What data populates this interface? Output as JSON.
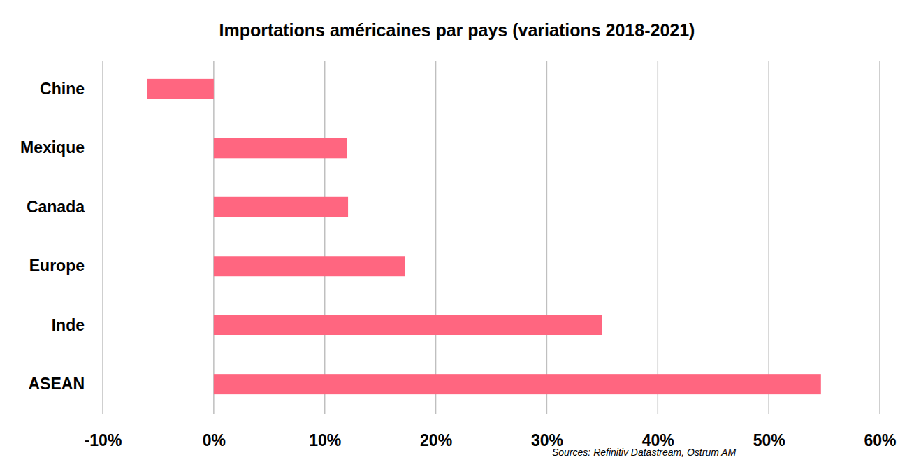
{
  "chart_data": {
    "type": "bar",
    "title": "Importations américaines par pays (variations 2018-2021)",
    "orientation": "horizontal",
    "categories": [
      "Chine",
      "Mexique",
      "Canada",
      "Europe",
      "Inde",
      "ASEAN"
    ],
    "values": [
      -6,
      12,
      12.1,
      17.2,
      35,
      54.7
    ],
    "color": "#ff6680",
    "xlim": [
      -10,
      60
    ],
    "xticks": [
      {
        "value": -10,
        "label": "-10%"
      },
      {
        "value": 0,
        "label": "0%"
      },
      {
        "value": 10,
        "label": "10%"
      },
      {
        "value": 20,
        "label": "20%"
      },
      {
        "value": 30,
        "label": "30%"
      },
      {
        "value": 40,
        "label": "40%"
      },
      {
        "value": 50,
        "label": "50%"
      },
      {
        "value": 60,
        "label": "60%"
      }
    ],
    "grid": true,
    "annotations": [
      "Sources: Refinitiv Datastream, Ostrum AM"
    ]
  }
}
